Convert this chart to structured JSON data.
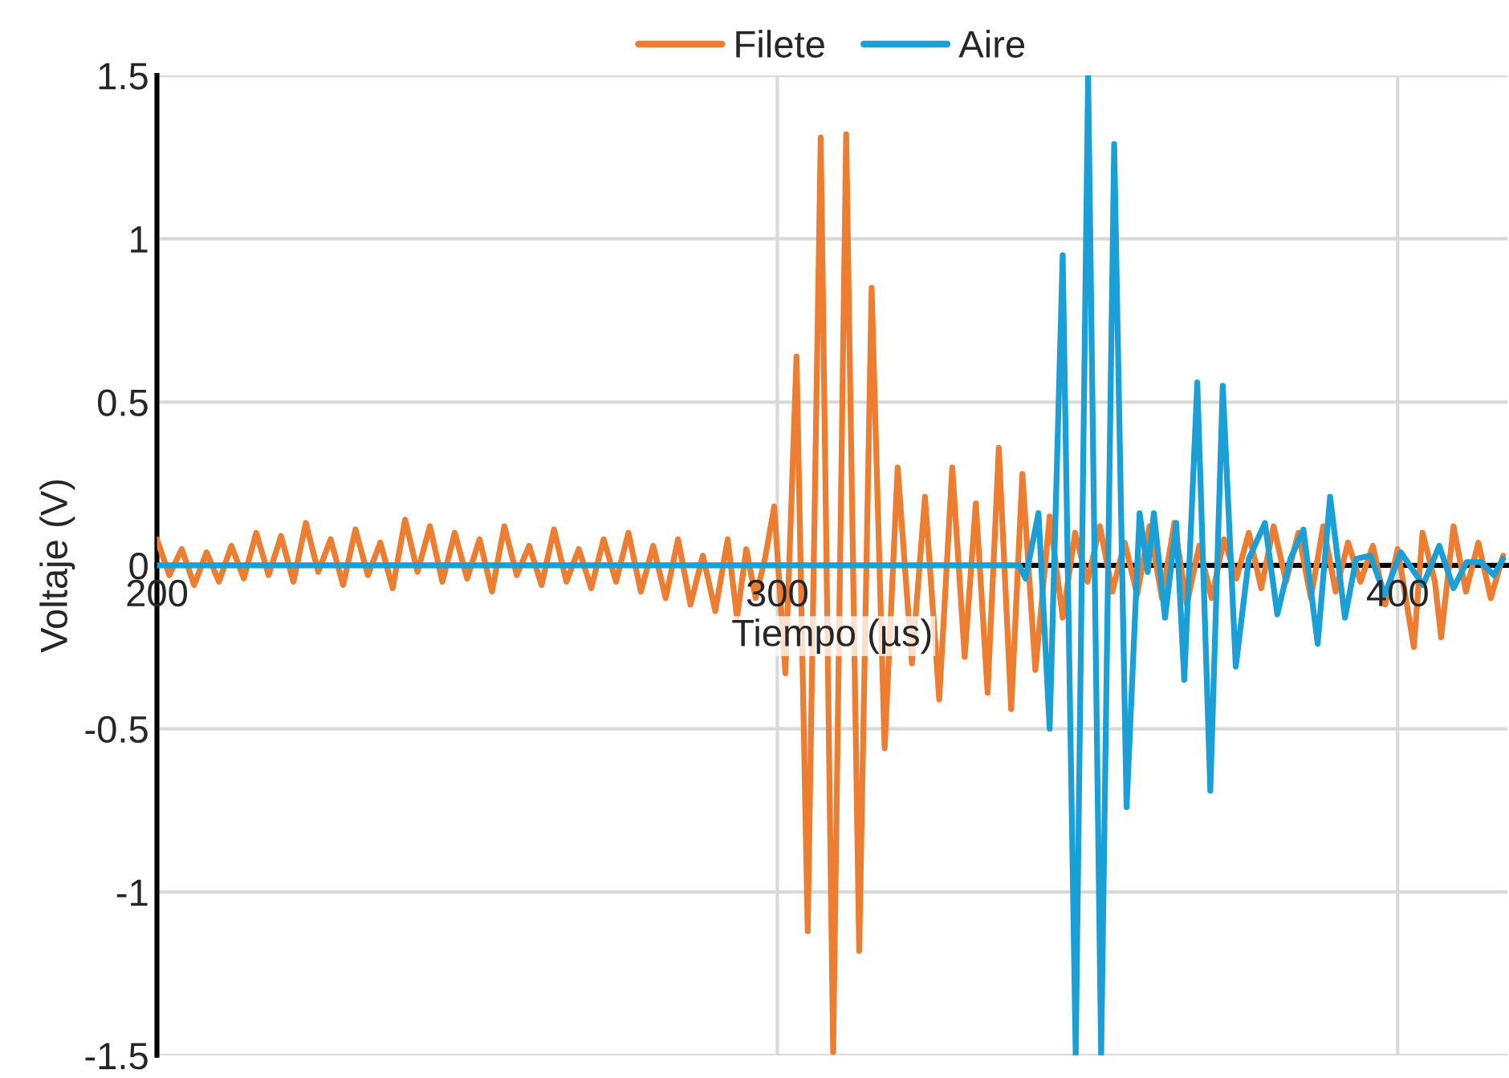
{
  "chart_data": {
    "type": "line",
    "xlabel": "Tiempo (µs)",
    "ylabel": "Voltaje (V)",
    "xlim": [
      200,
      417.7
    ],
    "xticks": [
      200,
      300,
      400
    ],
    "ylim": [
      -1.5,
      1.5
    ],
    "yticks": [
      -1.5,
      -1,
      -0.5,
      0,
      0.5,
      1,
      1.5
    ],
    "grid": true,
    "legend": "top",
    "line_style": "solid",
    "marker": "none",
    "series": [
      {
        "name": "Filete",
        "color": "#ed7d31",
        "x": [
          200,
          202,
          204,
          206,
          208,
          210,
          212,
          214,
          216,
          218,
          220,
          222,
          224,
          226,
          228,
          230,
          232,
          234,
          236,
          238,
          240,
          242,
          244,
          246,
          248,
          250,
          252,
          254,
          256,
          258,
          260,
          262,
          264,
          266,
          268,
          270,
          272,
          274,
          276,
          278,
          280,
          282,
          284,
          286,
          288,
          290,
          292,
          293.5,
          295,
          296.5,
          298,
          299.5,
          301.3,
          303.1,
          304.9,
          307,
          309,
          311.1,
          313.2,
          315.2,
          317.3,
          319.4,
          321.7,
          323.8,
          326.1,
          328.2,
          330.2,
          332,
          333.9,
          335.7,
          337.7,
          339.5,
          341.6,
          343.9,
          346,
          348,
          350,
          352,
          354,
          356,
          358,
          360,
          362,
          364,
          366,
          368,
          370,
          372,
          374,
          376,
          378,
          380,
          382,
          384,
          386,
          388,
          390,
          392,
          394,
          396,
          398,
          400,
          402.6,
          404,
          406,
          407,
          409,
          411,
          413,
          415,
          417
        ],
        "values": [
          0.08,
          -0.03,
          0.05,
          -0.06,
          0.04,
          -0.05,
          0.06,
          -0.04,
          0.1,
          -0.03,
          0.09,
          -0.05,
          0.13,
          -0.02,
          0.08,
          -0.06,
          0.11,
          -0.03,
          0.07,
          -0.07,
          0.14,
          -0.02,
          0.12,
          -0.05,
          0.1,
          -0.04,
          0.08,
          -0.08,
          0.12,
          -0.03,
          0.06,
          -0.06,
          0.11,
          -0.05,
          0.05,
          -0.07,
          0.08,
          -0.05,
          0.1,
          -0.08,
          0.06,
          -0.1,
          0.08,
          -0.12,
          0.03,
          -0.14,
          0.08,
          -0.16,
          0.05,
          -0.1,
          0.02,
          0.18,
          -0.33,
          0.64,
          -1.12,
          1.31,
          -1.49,
          1.32,
          -1.18,
          0.85,
          -0.56,
          0.3,
          -0.3,
          0.21,
          -0.41,
          0.3,
          -0.28,
          0.19,
          -0.39,
          0.36,
          -0.44,
          0.28,
          -0.32,
          0.15,
          -0.16,
          0.1,
          -0.05,
          0.12,
          -0.08,
          0.07,
          -0.09,
          0.12,
          -0.1,
          0.13,
          -0.12,
          0.06,
          -0.1,
          0.08,
          -0.04,
          0.1,
          -0.07,
          0.12,
          -0.05,
          0.1,
          -0.1,
          0.12,
          -0.08,
          0.07,
          -0.05,
          0.06,
          -0.12,
          0.05,
          -0.25,
          0.1,
          -0.05,
          -0.22,
          0.12,
          -0.08,
          0.07,
          -0.1,
          0.03
        ]
      },
      {
        "name": "Aire",
        "color": "#1a9fd6",
        "x": [
          200,
          339,
          340,
          342.1,
          343.9,
          346,
          348.1,
          350.1,
          352.2,
          354.3,
          356.3,
          358.4,
          359.7,
          360.7,
          362.5,
          364.3,
          365.6,
          367.7,
          369.8,
          371.8,
          373.9,
          376,
          378.6,
          380.6,
          382.7,
          384.8,
          387.1,
          389.1,
          391.5,
          393.3,
          395.6,
          397.9,
          400.5,
          404.1,
          406.7,
          409,
          411.1,
          413.4,
          415.5,
          417
        ],
        "values": [
          0,
          0,
          -0.04,
          0.16,
          -0.5,
          0.95,
          -1.5,
          1.5,
          -1.5,
          1.29,
          -0.74,
          0.16,
          -0.02,
          0.16,
          -0.16,
          0.13,
          -0.35,
          0.56,
          -0.69,
          0.55,
          -0.31,
          0.02,
          0.13,
          -0.15,
          0.02,
          0.11,
          -0.24,
          0.21,
          -0.16,
          0.02,
          0.03,
          -0.09,
          0.04,
          -0.06,
          0.06,
          -0.07,
          0.01,
          0.01,
          -0.03,
          0.02
        ]
      }
    ]
  }
}
